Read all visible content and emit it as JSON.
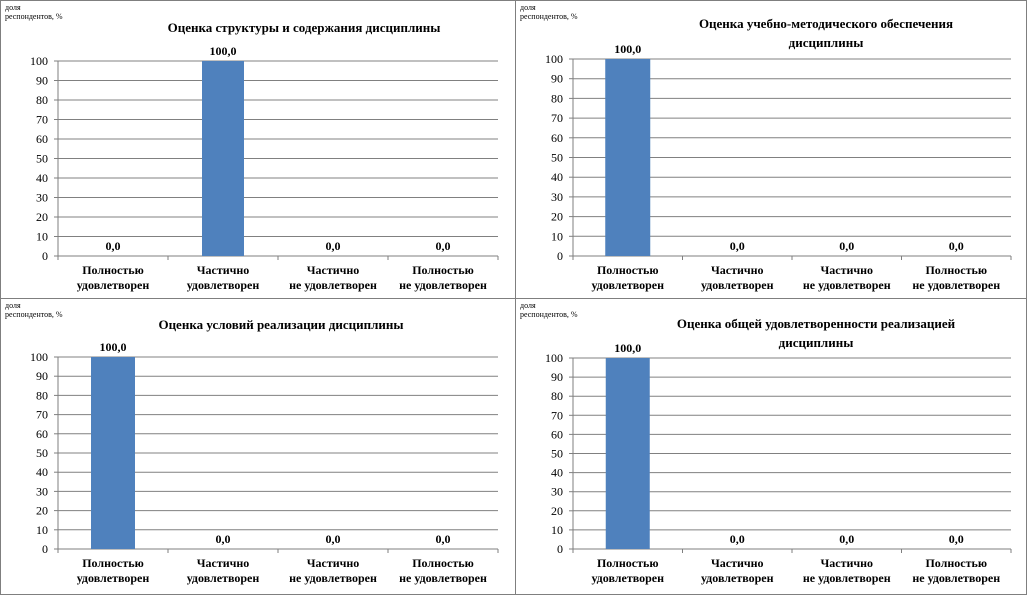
{
  "colors": {
    "bar": "#4f81bd",
    "axis": "#7f7f7f",
    "grid": "#808080",
    "text": "#000000"
  },
  "chart_data": [
    {
      "type": "bar",
      "title": [
        "Оценка структуры и содержания дисциплины"
      ],
      "ylabel": [
        "доля",
        "респондентов, %"
      ],
      "categories": [
        [
          "Полностью",
          "удовлетворен"
        ],
        [
          "Частично",
          "удовлетворен"
        ],
        [
          "Частично",
          "не удовлетворен"
        ],
        [
          "Полностью",
          "не удовлетворен"
        ]
      ],
      "values": [
        0.0,
        100.0,
        0.0,
        0.0
      ],
      "data_labels": [
        "0,0",
        "100,0",
        "0,0",
        "0,0"
      ],
      "ylim": [
        0,
        100
      ],
      "yticks": [
        "0",
        "10",
        "20",
        "30",
        "40",
        "50",
        "60",
        "70",
        "80",
        "90",
        "100"
      ],
      "grid": true,
      "legend": "none"
    },
    {
      "type": "bar",
      "title": [
        "Оценка учебно-методического обеспечения",
        "дисциплины"
      ],
      "ylabel": [
        "доля",
        "респондентов, %"
      ],
      "categories": [
        [
          "Полностью",
          "удовлетворен"
        ],
        [
          "Частично",
          "удовлетворен"
        ],
        [
          "Частично",
          "не удовлетворен"
        ],
        [
          "Полностью",
          "не удовлетворен"
        ]
      ],
      "values": [
        100.0,
        0.0,
        0.0,
        0.0
      ],
      "data_labels": [
        "100,0",
        "0,0",
        "0,0",
        "0,0"
      ],
      "ylim": [
        0,
        100
      ],
      "yticks": [
        "0",
        "10",
        "20",
        "30",
        "40",
        "50",
        "60",
        "70",
        "80",
        "90",
        "100"
      ],
      "grid": true,
      "legend": "none"
    },
    {
      "type": "bar",
      "title": [
        "Оценка условий реализации дисциплины"
      ],
      "ylabel": [
        "доля",
        "респондентов, %"
      ],
      "categories": [
        [
          "Полностью",
          "удовлетворен"
        ],
        [
          "Частично",
          "удовлетворен"
        ],
        [
          "Частично",
          "не удовлетворен"
        ],
        [
          "Полностью",
          "не удовлетворен"
        ]
      ],
      "values": [
        100.0,
        0.0,
        0.0,
        0.0
      ],
      "data_labels": [
        "100,0",
        "0,0",
        "0,0",
        "0,0"
      ],
      "ylim": [
        0,
        100
      ],
      "yticks": [
        "0",
        "10",
        "20",
        "30",
        "40",
        "50",
        "60",
        "70",
        "80",
        "90",
        "100"
      ],
      "grid": true,
      "legend": "none"
    },
    {
      "type": "bar",
      "title": [
        "Оценка общей удовлетворенности реализацией",
        "дисциплины"
      ],
      "ylabel": [
        "доля",
        "респондентов, %"
      ],
      "categories": [
        [
          "Полностью",
          "удовлетворен"
        ],
        [
          "Частично",
          "удовлетворен"
        ],
        [
          "Частично",
          "не удовлетворен"
        ],
        [
          "Полностью",
          "не удовлетворен"
        ]
      ],
      "values": [
        100.0,
        0.0,
        0.0,
        0.0
      ],
      "data_labels": [
        "100,0",
        "0,0",
        "0,0",
        "0,0"
      ],
      "ylim": [
        0,
        100
      ],
      "yticks": [
        "0",
        "10",
        "20",
        "30",
        "40",
        "50",
        "60",
        "70",
        "80",
        "90",
        "100"
      ],
      "grid": true,
      "legend": "none"
    }
  ]
}
